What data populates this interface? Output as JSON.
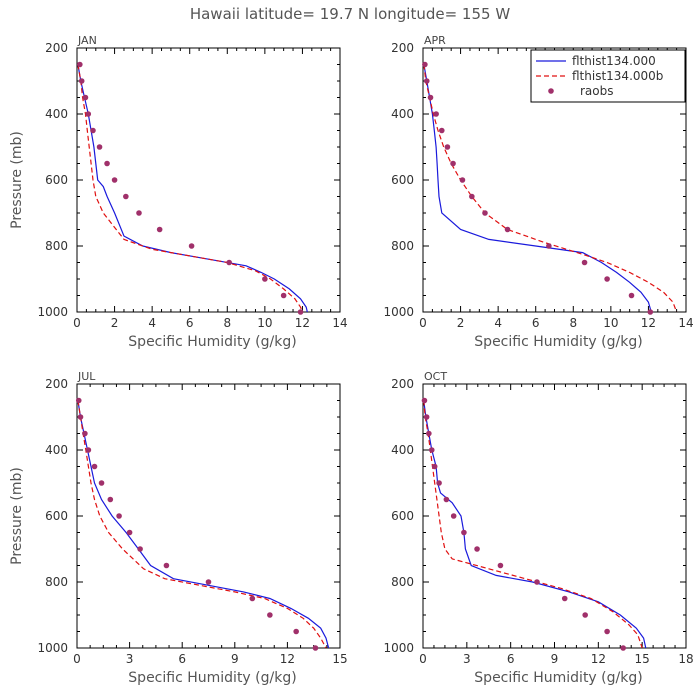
{
  "figure": {
    "title": "Hawaii  latitude= 19.7 N longitude= 155 W"
  },
  "colors": {
    "model_a": "#1a1adc",
    "model_b": "#e01010",
    "obs": "#a0306a",
    "axis": "#000000"
  },
  "legend": {
    "items": [
      "flthist134.000",
      "flthist134.000b",
      "raobs"
    ]
  },
  "chart_data": [
    {
      "type": "line",
      "panel_title": "JAN",
      "xlabel": "Specific Humidity (g/kg)",
      "ylabel": "Pressure (mb)",
      "xlim": [
        0,
        14
      ],
      "xticks": [
        0,
        2,
        4,
        6,
        8,
        10,
        12,
        14
      ],
      "ylim": [
        1000,
        200
      ],
      "yticks": [
        200,
        400,
        600,
        800,
        1000
      ],
      "series": [
        {
          "name": "flthist134.000",
          "style": "solid",
          "points": [
            [
              0.05,
              250
            ],
            [
              0.2,
              300
            ],
            [
              0.4,
              350
            ],
            [
              0.6,
              400
            ],
            [
              0.75,
              450
            ],
            [
              0.9,
              500
            ],
            [
              1.0,
              550
            ],
            [
              1.1,
              600
            ],
            [
              1.4,
              620
            ],
            [
              1.6,
              650
            ],
            [
              2.0,
              700
            ],
            [
              2.5,
              770
            ],
            [
              3.5,
              800
            ],
            [
              5.0,
              820
            ],
            [
              7.0,
              840
            ],
            [
              9.0,
              860
            ],
            [
              9.8,
              880
            ],
            [
              10.5,
              900
            ],
            [
              11.3,
              930
            ],
            [
              11.9,
              960
            ],
            [
              12.2,
              985
            ],
            [
              12.3,
              1010
            ]
          ]
        },
        {
          "name": "flthist134.000b",
          "style": "dashed",
          "points": [
            [
              0.05,
              250
            ],
            [
              0.2,
              300
            ],
            [
              0.3,
              350
            ],
            [
              0.45,
              400
            ],
            [
              0.55,
              450
            ],
            [
              0.65,
              500
            ],
            [
              0.75,
              550
            ],
            [
              0.85,
              600
            ],
            [
              1.0,
              650
            ],
            [
              1.4,
              700
            ],
            [
              2.5,
              780
            ],
            [
              4.0,
              810
            ],
            [
              6.0,
              830
            ],
            [
              8.0,
              850
            ],
            [
              9.5,
              875
            ],
            [
              10.3,
              900
            ],
            [
              11.0,
              930
            ],
            [
              11.6,
              960
            ],
            [
              11.9,
              985
            ],
            [
              12.0,
              1000
            ]
          ]
        },
        {
          "name": "raobs",
          "style": "markers",
          "points": [
            [
              0.15,
              250
            ],
            [
              0.25,
              300
            ],
            [
              0.45,
              350
            ],
            [
              0.6,
              400
            ],
            [
              0.85,
              450
            ],
            [
              1.2,
              500
            ],
            [
              1.6,
              550
            ],
            [
              2.0,
              600
            ],
            [
              2.6,
              650
            ],
            [
              3.3,
              700
            ],
            [
              4.4,
              750
            ],
            [
              6.1,
              800
            ],
            [
              8.1,
              850
            ],
            [
              10.0,
              900
            ],
            [
              11.0,
              950
            ],
            [
              11.9,
              1000
            ]
          ]
        }
      ]
    },
    {
      "type": "line",
      "panel_title": "APR",
      "xlabel": "Specific Humidity (g/kg)",
      "ylabel": "",
      "xlim": [
        0,
        14
      ],
      "xticks": [
        0,
        2,
        4,
        6,
        8,
        10,
        12,
        14
      ],
      "ylim": [
        1000,
        200
      ],
      "yticks": [
        200,
        400,
        600,
        800,
        1000
      ],
      "series": [
        {
          "name": "flthist134.000",
          "style": "solid",
          "points": [
            [
              0.05,
              250
            ],
            [
              0.2,
              300
            ],
            [
              0.35,
              350
            ],
            [
              0.5,
              400
            ],
            [
              0.6,
              450
            ],
            [
              0.7,
              500
            ],
            [
              0.75,
              550
            ],
            [
              0.8,
              600
            ],
            [
              0.85,
              650
            ],
            [
              1.0,
              700
            ],
            [
              2.0,
              750
            ],
            [
              3.5,
              780
            ],
            [
              6.0,
              800
            ],
            [
              8.5,
              820
            ],
            [
              9.5,
              850
            ],
            [
              10.3,
              880
            ],
            [
              11.0,
              910
            ],
            [
              11.6,
              940
            ],
            [
              12.0,
              970
            ],
            [
              12.2,
              1010
            ]
          ]
        },
        {
          "name": "flthist134.000b",
          "style": "dashed",
          "points": [
            [
              0.05,
              250
            ],
            [
              0.15,
              300
            ],
            [
              0.35,
              350
            ],
            [
              0.55,
              400
            ],
            [
              0.8,
              450
            ],
            [
              1.1,
              500
            ],
            [
              1.5,
              550
            ],
            [
              2.0,
              600
            ],
            [
              2.6,
              650
            ],
            [
              3.3,
              700
            ],
            [
              4.5,
              750
            ],
            [
              6.5,
              790
            ],
            [
              8.5,
              825
            ],
            [
              9.8,
              850
            ],
            [
              11.0,
              880
            ],
            [
              12.0,
              910
            ],
            [
              12.8,
              940
            ],
            [
              13.3,
              970
            ],
            [
              13.5,
              1000
            ]
          ]
        },
        {
          "name": "raobs",
          "style": "markers",
          "points": [
            [
              0.1,
              250
            ],
            [
              0.2,
              300
            ],
            [
              0.4,
              350
            ],
            [
              0.7,
              400
            ],
            [
              1.0,
              450
            ],
            [
              1.3,
              500
            ],
            [
              1.6,
              550
            ],
            [
              2.1,
              600
            ],
            [
              2.6,
              650
            ],
            [
              3.3,
              700
            ],
            [
              4.5,
              750
            ],
            [
              6.7,
              800
            ],
            [
              8.6,
              850
            ],
            [
              9.8,
              900
            ],
            [
              11.1,
              950
            ],
            [
              12.1,
              1000
            ]
          ]
        }
      ]
    },
    {
      "type": "line",
      "panel_title": "JUL",
      "xlabel": "Specific Humidity (g/kg)",
      "ylabel": "Pressure (mb)",
      "xlim": [
        0,
        15
      ],
      "xticks": [
        0,
        3,
        6,
        9,
        12,
        15
      ],
      "ylim": [
        1000,
        200
      ],
      "yticks": [
        200,
        400,
        600,
        800,
        1000
      ],
      "series": [
        {
          "name": "flthist134.000",
          "style": "solid",
          "points": [
            [
              0.05,
              250
            ],
            [
              0.2,
              300
            ],
            [
              0.4,
              350
            ],
            [
              0.6,
              400
            ],
            [
              0.8,
              450
            ],
            [
              1.0,
              500
            ],
            [
              1.4,
              550
            ],
            [
              2.0,
              600
            ],
            [
              2.8,
              650
            ],
            [
              3.5,
              700
            ],
            [
              4.2,
              750
            ],
            [
              5.5,
              790
            ],
            [
              7.5,
              810
            ],
            [
              9.5,
              830
            ],
            [
              11.0,
              850
            ],
            [
              12.2,
              880
            ],
            [
              13.2,
              910
            ],
            [
              13.9,
              940
            ],
            [
              14.2,
              970
            ],
            [
              14.4,
              1010
            ]
          ]
        },
        {
          "name": "flthist134.000b",
          "style": "dashed",
          "points": [
            [
              0.05,
              250
            ],
            [
              0.2,
              300
            ],
            [
              0.35,
              350
            ],
            [
              0.5,
              400
            ],
            [
              0.65,
              450
            ],
            [
              0.8,
              500
            ],
            [
              1.0,
              550
            ],
            [
              1.3,
              600
            ],
            [
              1.8,
              650
            ],
            [
              2.6,
              700
            ],
            [
              3.8,
              760
            ],
            [
              5.0,
              790
            ],
            [
              7.0,
              810
            ],
            [
              9.0,
              830
            ],
            [
              10.7,
              850
            ],
            [
              12.0,
              880
            ],
            [
              12.9,
              910
            ],
            [
              13.5,
              940
            ],
            [
              13.9,
              970
            ],
            [
              14.2,
              1000
            ]
          ]
        },
        {
          "name": "raobs",
          "style": "markers",
          "points": [
            [
              0.1,
              250
            ],
            [
              0.2,
              300
            ],
            [
              0.45,
              350
            ],
            [
              0.65,
              400
            ],
            [
              1.0,
              450
            ],
            [
              1.4,
              500
            ],
            [
              1.9,
              550
            ],
            [
              2.4,
              600
            ],
            [
              3.0,
              650
            ],
            [
              3.6,
              700
            ],
            [
              5.1,
              750
            ],
            [
              7.5,
              800
            ],
            [
              10.0,
              850
            ],
            [
              11.0,
              900
            ],
            [
              12.5,
              950
            ],
            [
              13.6,
              1000
            ]
          ]
        }
      ]
    },
    {
      "type": "line",
      "panel_title": "OCT",
      "xlabel": "Specific Humidity (g/kg)",
      "ylabel": "",
      "xlim": [
        0,
        18
      ],
      "xticks": [
        0,
        3,
        6,
        9,
        12,
        15,
        18
      ],
      "ylim": [
        1000,
        200
      ],
      "yticks": [
        200,
        400,
        600,
        800,
        1000
      ],
      "series": [
        {
          "name": "flthist134.000",
          "style": "solid",
          "points": [
            [
              0.05,
              250
            ],
            [
              0.2,
              300
            ],
            [
              0.4,
              350
            ],
            [
              0.6,
              400
            ],
            [
              0.9,
              450
            ],
            [
              1.0,
              500
            ],
            [
              1.2,
              530
            ],
            [
              2.0,
              560
            ],
            [
              2.6,
              600
            ],
            [
              2.8,
              650
            ],
            [
              2.9,
              700
            ],
            [
              3.3,
              750
            ],
            [
              5.0,
              780
            ],
            [
              7.5,
              800
            ],
            [
              10.0,
              830
            ],
            [
              12.0,
              860
            ],
            [
              13.5,
              900
            ],
            [
              14.6,
              940
            ],
            [
              15.1,
              970
            ],
            [
              15.3,
              1010
            ]
          ]
        },
        {
          "name": "flthist134.000b",
          "style": "dashed",
          "points": [
            [
              0.05,
              250
            ],
            [
              0.15,
              300
            ],
            [
              0.35,
              350
            ],
            [
              0.5,
              400
            ],
            [
              0.65,
              450
            ],
            [
              0.8,
              500
            ],
            [
              0.95,
              550
            ],
            [
              1.1,
              600
            ],
            [
              1.25,
              650
            ],
            [
              1.5,
              700
            ],
            [
              2.0,
              730
            ],
            [
              4.5,
              760
            ],
            [
              7.0,
              790
            ],
            [
              9.5,
              820
            ],
            [
              11.5,
              850
            ],
            [
              13.0,
              890
            ],
            [
              14.1,
              930
            ],
            [
              14.7,
              960
            ],
            [
              15.0,
              1000
            ]
          ]
        },
        {
          "name": "raobs",
          "style": "markers",
          "points": [
            [
              0.1,
              250
            ],
            [
              0.25,
              300
            ],
            [
              0.4,
              350
            ],
            [
              0.6,
              400
            ],
            [
              0.8,
              450
            ],
            [
              1.1,
              500
            ],
            [
              1.6,
              550
            ],
            [
              2.1,
              600
            ],
            [
              2.8,
              650
            ],
            [
              3.7,
              700
            ],
            [
              5.3,
              750
            ],
            [
              7.8,
              800
            ],
            [
              9.7,
              850
            ],
            [
              11.1,
              900
            ],
            [
              12.6,
              950
            ],
            [
              13.7,
              1000
            ]
          ]
        }
      ]
    }
  ]
}
